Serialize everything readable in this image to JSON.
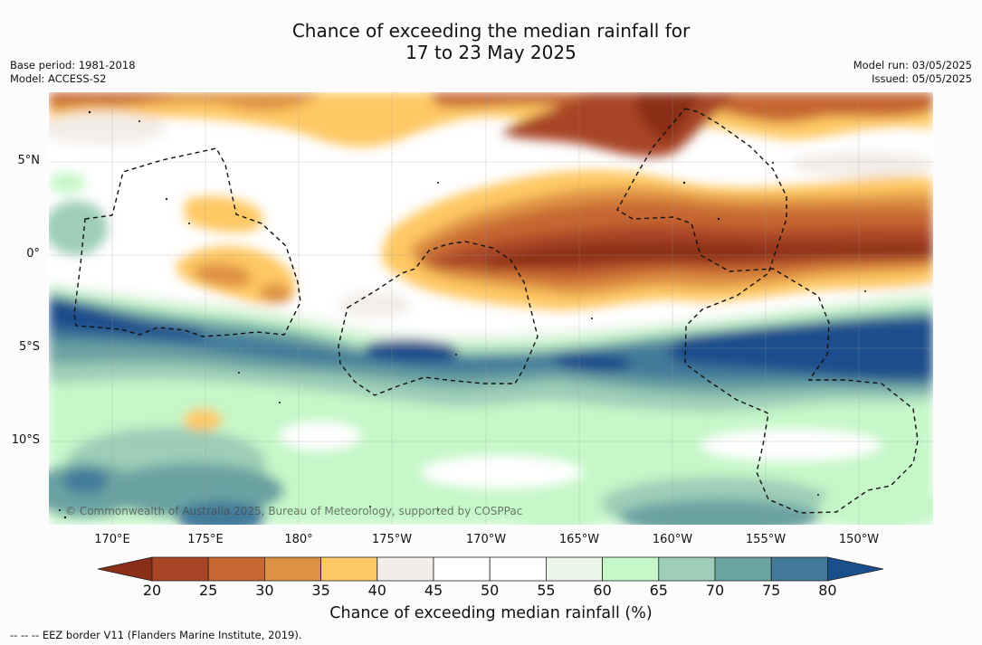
{
  "title": {
    "line1": "Chance of exceeding the median rainfall for",
    "line2": "17 to 23 May 2025"
  },
  "meta_left": {
    "base_period": "Base period: 1981-2018",
    "model": "Model: ACCESS-S2"
  },
  "meta_right": {
    "model_run": "Model run: 03/05/2025",
    "issued": "Issued: 05/05/2025"
  },
  "map": {
    "credit": "© Commonwealth of Australia 2025, Bureau of Meteorology, supported by COSPPac",
    "lat_labels": [
      "5°N",
      "0°",
      "5°S",
      "10°S"
    ],
    "lon_labels": [
      "170°E",
      "175°E",
      "180°",
      "175°W",
      "170°W",
      "165°W",
      "160°W",
      "155°W",
      "150°W"
    ]
  },
  "colorbar": {
    "label": "Chance of exceeding median rainfall (%)",
    "ticks": [
      "20",
      "25",
      "30",
      "35",
      "40",
      "45",
      "50",
      "55",
      "60",
      "65",
      "70",
      "75",
      "80"
    ],
    "colors": [
      "#8b2e18",
      "#a84527",
      "#c66630",
      "#de9143",
      "#fec864",
      "#f2ede8",
      "#ffffff",
      "#ffffff",
      "#eaf5e8",
      "#c5f7c8",
      "#9ecdb8",
      "#6ba2a2",
      "#437a9a",
      "#1b4e8c"
    ]
  },
  "footer": {
    "eez_note": "--  --  -- EEZ border V11 (Flanders Marine Institute, 2019)."
  }
}
